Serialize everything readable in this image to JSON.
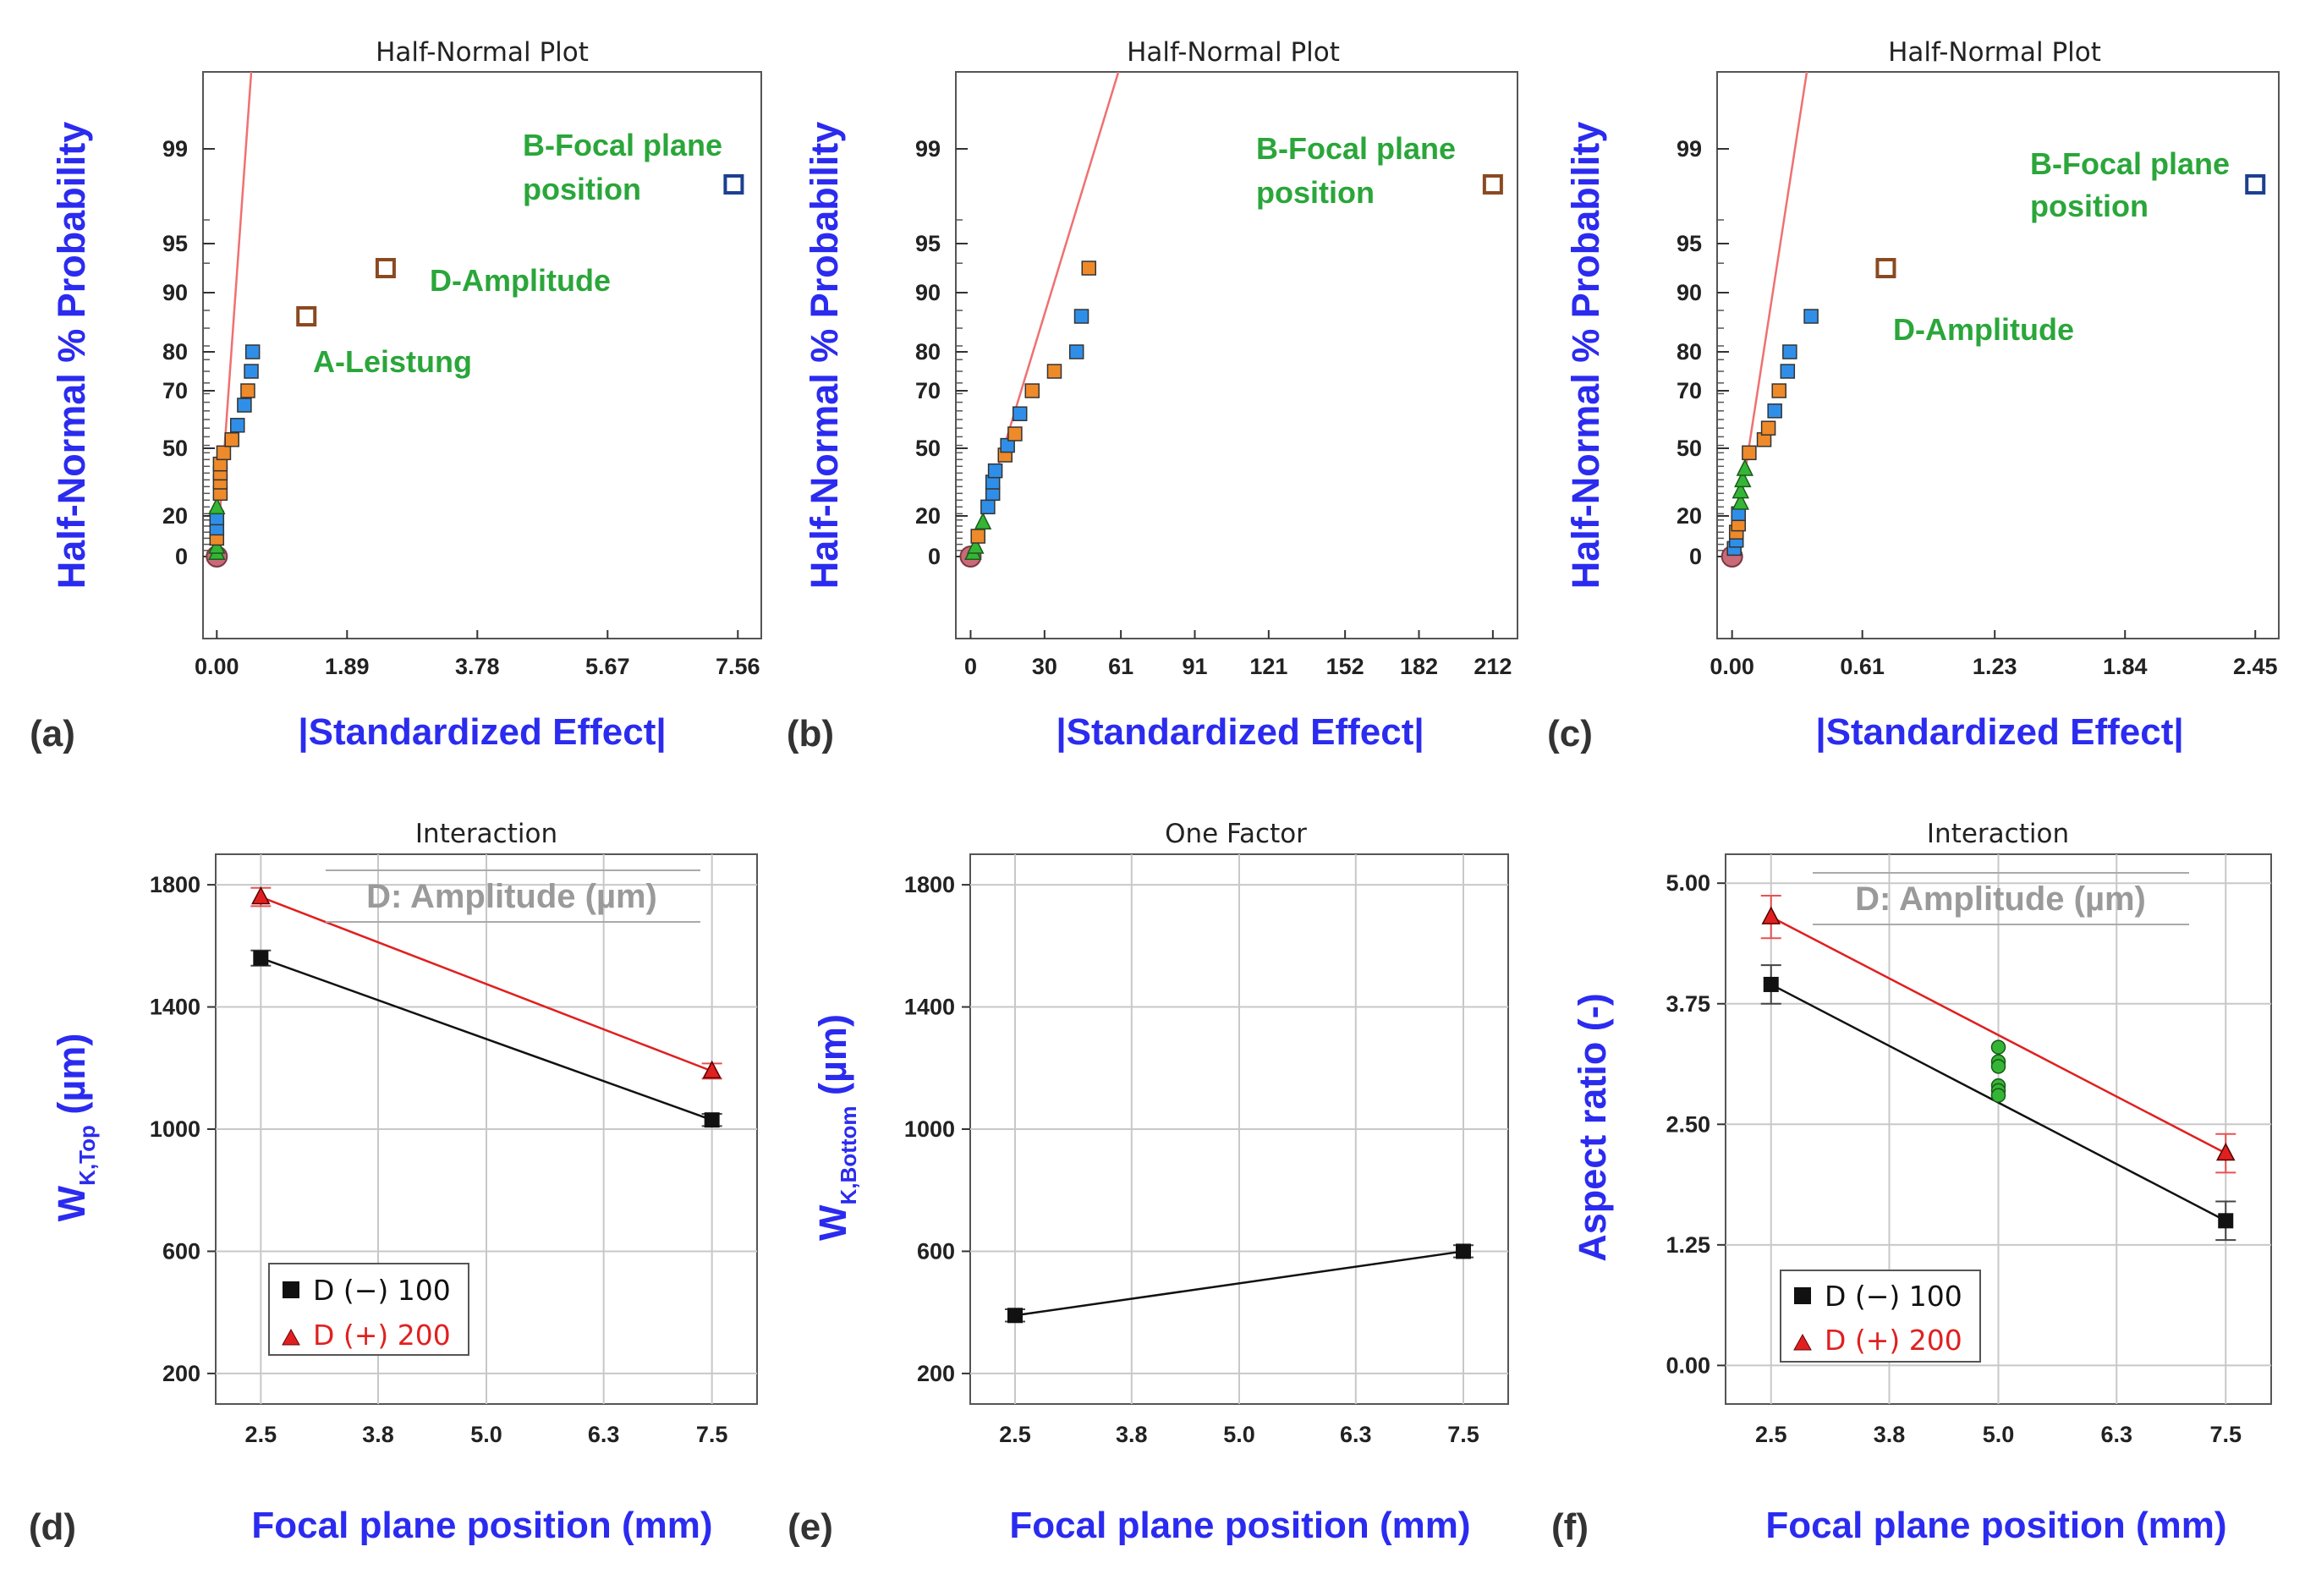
{
  "colors": {
    "axis_label": "#2b2bf0",
    "annotation": "#2aa63a",
    "fit_line": "#f07070",
    "blue_point": "#2f8fe8",
    "orange_point": "#ee8a2a",
    "green_point": "#35b535",
    "error_point": "#c86a78",
    "low_series": "#111111",
    "high_series": "#e02020",
    "grid": "#c8c8c8"
  },
  "panels": {
    "a": {
      "letter": "(a)",
      "title": "Half-Normal Plot",
      "ylabel": "Half-Normal % Probability",
      "xlabel": "|Standardized Effect|",
      "annotations": {
        "b": "B-Focal plane",
        "b2": "position",
        "d": "D-Amplitude",
        "a": "A-Leistung"
      }
    },
    "b": {
      "letter": "(b)",
      "title": "Half-Normal Plot",
      "ylabel": "Half-Normal % Probability",
      "xlabel": "|Standardized Effect|",
      "annotations": {
        "b": "B-Focal plane",
        "b2": "position"
      }
    },
    "c": {
      "letter": "(c)",
      "title": "Half-Normal Plot",
      "ylabel": "Half-Normal % Probability",
      "xlabel": "|Standardized Effect|",
      "annotations": {
        "b": "B-Focal plane",
        "b2": "position",
        "d": "D-Amplitude"
      }
    },
    "d": {
      "letter": "(d)",
      "title": "Interaction",
      "ylabel_main": "W",
      "ylabel_sub": "K,Top",
      "ylabel_unit": " (µm)",
      "xlabel": "Focal plane position (mm)",
      "factor_label": "D: Amplitude (µm)",
      "legend": {
        "low": "D (−) 100",
        "high": "D (+) 200"
      }
    },
    "e": {
      "letter": "(e)",
      "title": "One Factor",
      "ylabel_main": "W",
      "ylabel_sub": "K,Bottom",
      "ylabel_unit": " (µm)",
      "xlabel": "Focal plane position (mm)"
    },
    "f": {
      "letter": "(f)",
      "title": "Interaction",
      "ylabel": "Aspect ratio (-)",
      "xlabel": "Focal plane position (mm)",
      "factor_label": "D: Amplitude (µm)",
      "legend": {
        "low": "D (−) 100",
        "high": "D (+) 200"
      }
    }
  },
  "chart_data": [
    {
      "id": "a",
      "type": "scatter",
      "title": "Half-Normal Plot",
      "xlabel": "|Standardized Effect|",
      "ylabel": "Half-Normal % Probability",
      "xlim": [
        -0.2,
        7.9
      ],
      "xticks": [
        0.0,
        1.89,
        3.78,
        5.67,
        7.56
      ],
      "xtick_labels": [
        "0.00",
        "1.89",
        "3.78",
        "5.67",
        "7.56"
      ],
      "yticks": [
        0,
        20,
        50,
        70,
        80,
        90,
        95,
        99
      ],
      "ytick_labels": [
        "0",
        "20",
        "50",
        "70",
        "80",
        "90",
        "95",
        "99"
      ],
      "fit_line": [
        [
          0.0,
          0
        ],
        [
          0.5,
          99.9
        ]
      ],
      "points": [
        {
          "x": 0.0,
          "p": 0,
          "kind": "error"
        },
        {
          "x": 0.0,
          "p": 2,
          "kind": "green"
        },
        {
          "x": 0.0,
          "p": 5,
          "kind": "green"
        },
        {
          "x": 0.0,
          "p": 9,
          "kind": "orange"
        },
        {
          "x": 0.0,
          "p": 14,
          "kind": "blue"
        },
        {
          "x": 0.0,
          "p": 19,
          "kind": "blue"
        },
        {
          "x": 0.0,
          "p": 24,
          "kind": "green"
        },
        {
          "x": 0.05,
          "p": 30,
          "kind": "orange"
        },
        {
          "x": 0.05,
          "p": 35,
          "kind": "orange"
        },
        {
          "x": 0.05,
          "p": 39,
          "kind": "orange"
        },
        {
          "x": 0.05,
          "p": 43,
          "kind": "orange"
        },
        {
          "x": 0.1,
          "p": 48,
          "kind": "orange"
        },
        {
          "x": 0.22,
          "p": 53,
          "kind": "orange"
        },
        {
          "x": 0.3,
          "p": 58,
          "kind": "blue"
        },
        {
          "x": 0.4,
          "p": 65,
          "kind": "blue"
        },
        {
          "x": 0.45,
          "p": 70,
          "kind": "orange"
        },
        {
          "x": 0.5,
          "p": 75,
          "kind": "blue"
        },
        {
          "x": 0.52,
          "p": 80,
          "kind": "blue"
        },
        {
          "x": 1.3,
          "p": 86,
          "kind": "orange_big"
        },
        {
          "x": 2.45,
          "p": 92.5,
          "kind": "orange_big"
        },
        {
          "x": 7.5,
          "p": 97.5,
          "kind": "blue_big"
        }
      ],
      "annotations": [
        "B-Focal plane position",
        "D-Amplitude",
        "A-Leistung"
      ]
    },
    {
      "id": "b",
      "type": "scatter",
      "title": "Half-Normal Plot",
      "xlabel": "|Standardized Effect|",
      "ylabel": "Half-Normal % Probability",
      "xlim": [
        -6,
        222
      ],
      "xticks": [
        0,
        30,
        61,
        91,
        121,
        152,
        182,
        212
      ],
      "xtick_labels": [
        "0",
        "30",
        "61",
        "91",
        "121",
        "152",
        "182",
        "212"
      ],
      "yticks": [
        0,
        20,
        50,
        70,
        80,
        90,
        95,
        99
      ],
      "ytick_labels": [
        "0",
        "20",
        "50",
        "70",
        "80",
        "90",
        "95",
        "99"
      ],
      "fit_line": [
        [
          0,
          0
        ],
        [
          60,
          99.9
        ]
      ],
      "points": [
        {
          "x": 0,
          "p": 0,
          "kind": "error"
        },
        {
          "x": 1,
          "p": 2,
          "kind": "green"
        },
        {
          "x": 2,
          "p": 5,
          "kind": "green"
        },
        {
          "x": 3,
          "p": 10,
          "kind": "orange"
        },
        {
          "x": 5,
          "p": 17,
          "kind": "green"
        },
        {
          "x": 7,
          "p": 24,
          "kind": "blue"
        },
        {
          "x": 9,
          "p": 30,
          "kind": "blue"
        },
        {
          "x": 9,
          "p": 35,
          "kind": "blue"
        },
        {
          "x": 10,
          "p": 40,
          "kind": "blue"
        },
        {
          "x": 14,
          "p": 47,
          "kind": "orange"
        },
        {
          "x": 15,
          "p": 51,
          "kind": "blue"
        },
        {
          "x": 18,
          "p": 55,
          "kind": "orange"
        },
        {
          "x": 20,
          "p": 62,
          "kind": "blue"
        },
        {
          "x": 25,
          "p": 70,
          "kind": "orange"
        },
        {
          "x": 34,
          "p": 75,
          "kind": "orange"
        },
        {
          "x": 43,
          "p": 80,
          "kind": "blue"
        },
        {
          "x": 45,
          "p": 86,
          "kind": "blue"
        },
        {
          "x": 48,
          "p": 92.5,
          "kind": "orange"
        },
        {
          "x": 212,
          "p": 97.5,
          "kind": "orange_big"
        }
      ],
      "annotations": [
        "B-Focal plane position"
      ]
    },
    {
      "id": "c",
      "type": "scatter",
      "title": "Half-Normal Plot",
      "xlabel": "|Standardized Effect|",
      "ylabel": "Half-Normal % Probability",
      "xlim": [
        -0.07,
        2.56
      ],
      "xticks": [
        0.0,
        0.61,
        1.23,
        1.84,
        2.45
      ],
      "xtick_labels": [
        "0.00",
        "0.61",
        "1.23",
        "1.84",
        "2.45"
      ],
      "yticks": [
        0,
        20,
        50,
        70,
        80,
        90,
        95,
        99
      ],
      "ytick_labels": [
        "0",
        "20",
        "50",
        "70",
        "80",
        "90",
        "95",
        "99"
      ],
      "fit_line": [
        [
          0,
          0
        ],
        [
          0.35,
          99.9
        ]
      ],
      "points": [
        {
          "x": 0.0,
          "p": 0,
          "kind": "error"
        },
        {
          "x": 0.01,
          "p": 4,
          "kind": "blue"
        },
        {
          "x": 0.02,
          "p": 8,
          "kind": "blue"
        },
        {
          "x": 0.02,
          "p": 12,
          "kind": "orange"
        },
        {
          "x": 0.03,
          "p": 16,
          "kind": "orange"
        },
        {
          "x": 0.03,
          "p": 21,
          "kind": "blue"
        },
        {
          "x": 0.04,
          "p": 26,
          "kind": "green"
        },
        {
          "x": 0.04,
          "p": 31,
          "kind": "green"
        },
        {
          "x": 0.05,
          "p": 36,
          "kind": "green"
        },
        {
          "x": 0.06,
          "p": 41,
          "kind": "green"
        },
        {
          "x": 0.08,
          "p": 48,
          "kind": "orange"
        },
        {
          "x": 0.15,
          "p": 53,
          "kind": "orange"
        },
        {
          "x": 0.17,
          "p": 57,
          "kind": "orange"
        },
        {
          "x": 0.2,
          "p": 63,
          "kind": "blue"
        },
        {
          "x": 0.22,
          "p": 70,
          "kind": "orange"
        },
        {
          "x": 0.26,
          "p": 75,
          "kind": "blue"
        },
        {
          "x": 0.27,
          "p": 80,
          "kind": "blue"
        },
        {
          "x": 0.37,
          "p": 86,
          "kind": "blue"
        },
        {
          "x": 0.72,
          "p": 92.5,
          "kind": "orange_big"
        },
        {
          "x": 2.45,
          "p": 97.5,
          "kind": "blue_big"
        }
      ],
      "annotations": [
        "B-Focal plane position",
        "D-Amplitude"
      ]
    },
    {
      "id": "d",
      "type": "line",
      "title": "Interaction",
      "xlabel": "Focal plane position (mm)",
      "ylabel": "WK,Top (µm)",
      "xlim": [
        2.0,
        8.0
      ],
      "ylim": [
        100,
        1900
      ],
      "xticks": [
        2.5,
        3.8,
        5.0,
        6.3,
        7.5
      ],
      "xtick_labels": [
        "2.5",
        "3.8",
        "5.0",
        "6.3",
        "7.5"
      ],
      "yticks": [
        200,
        600,
        1000,
        1400,
        1800
      ],
      "ytick_labels": [
        "200",
        "600",
        "1000",
        "1400",
        "1800"
      ],
      "series": [
        {
          "name": "D (−) 100",
          "x": [
            2.5,
            7.5
          ],
          "y": [
            1560,
            1030
          ],
          "err": [
            25,
            20
          ],
          "marker": "square",
          "color": "#111111"
        },
        {
          "name": "D (+) 200",
          "x": [
            2.5,
            7.5
          ],
          "y": [
            1760,
            1190
          ],
          "err": [
            30,
            25
          ],
          "marker": "triangle",
          "color": "#e02020"
        }
      ]
    },
    {
      "id": "e",
      "type": "line",
      "title": "One Factor",
      "xlabel": "Focal plane position (mm)",
      "ylabel": "WK,Bottom (µm)",
      "xlim": [
        2.0,
        8.0
      ],
      "ylim": [
        100,
        1900
      ],
      "xticks": [
        2.5,
        3.8,
        5.0,
        6.3,
        7.5
      ],
      "xtick_labels": [
        "2.5",
        "3.8",
        "5.0",
        "6.3",
        "7.5"
      ],
      "yticks": [
        200,
        600,
        1000,
        1400,
        1800
      ],
      "ytick_labels": [
        "200",
        "600",
        "1000",
        "1400",
        "1800"
      ],
      "series": [
        {
          "name": "",
          "x": [
            2.5,
            7.5
          ],
          "y": [
            390,
            600
          ],
          "err": [
            20,
            20
          ],
          "marker": "square",
          "color": "#111111"
        }
      ]
    },
    {
      "id": "f",
      "type": "line",
      "title": "Interaction",
      "xlabel": "Focal plane position (mm)",
      "ylabel": "Aspect ratio (-)",
      "xlim": [
        2.0,
        8.0
      ],
      "ylim": [
        -0.4,
        5.3
      ],
      "xticks": [
        2.5,
        3.8,
        5.0,
        6.3,
        7.5
      ],
      "xtick_labels": [
        "2.5",
        "3.8",
        "5.0",
        "6.3",
        "7.5"
      ],
      "yticks": [
        0.0,
        1.25,
        2.5,
        3.75,
        5.0
      ],
      "ytick_labels": [
        "0.00",
        "1.25",
        "2.50",
        "3.75",
        "5.00"
      ],
      "series": [
        {
          "name": "D (−) 100",
          "x": [
            2.5,
            7.5
          ],
          "y": [
            3.95,
            1.5
          ],
          "err": [
            0.2,
            0.2
          ],
          "marker": "square",
          "color": "#111111"
        },
        {
          "name": "D (+) 200",
          "x": [
            2.5,
            7.5
          ],
          "y": [
            4.65,
            2.2
          ],
          "err": [
            0.22,
            0.2
          ],
          "marker": "triangle",
          "color": "#e02020"
        }
      ],
      "center_points": {
        "x": 5.0,
        "y": [
          3.3,
          3.15,
          3.1,
          2.9,
          2.85,
          2.8
        ],
        "color": "#35b535"
      }
    }
  ]
}
